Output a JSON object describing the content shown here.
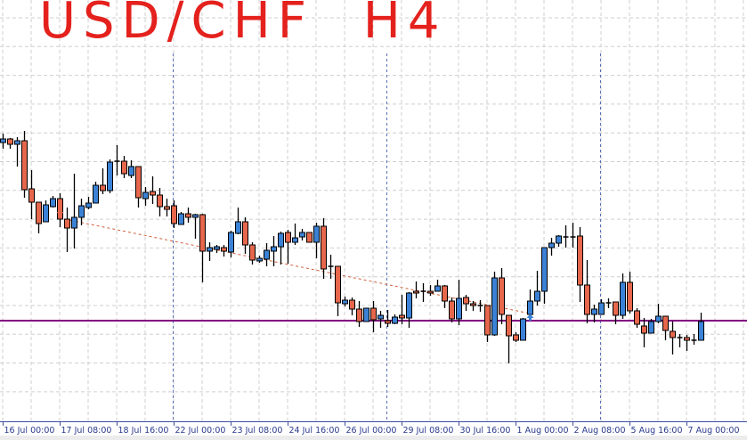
{
  "annotation": {
    "title_handwritten": "USD/CHF H4",
    "color": "#e4211d"
  },
  "chart_data": {
    "type": "candlestick",
    "title": "",
    "xlabel": "",
    "ylabel": "",
    "value_units": "relative price level (no price scale visible)",
    "ylim": [
      0,
      47
    ],
    "grid": true,
    "legend": "none",
    "colors": {
      "bull": "#3b82d6",
      "bear": "#e6674c",
      "outline": "#000000",
      "grid": "#cfcfcf",
      "axis": "#3f4f9f",
      "horizontal_line": "#800080",
      "separator": "#5a6fb8",
      "trade_line": "#d0603c"
    },
    "x_tick_labels": [
      "16 Jul 00:00",
      "17 Jul 08:00",
      "18 Jul 16:00",
      "22 Jul 00:00",
      "23 Jul 08:00",
      "24 Jul 16:00",
      "26 Jul 00:00",
      "29 Jul 08:00",
      "30 Jul 16:00",
      "1 Aug 00:00",
      "2 Aug 08:00",
      "5 Aug 16:00",
      "7 Aug 00:00"
    ],
    "x_tick_every_n_candles": 8,
    "period_separators_at_candle": [
      24,
      54,
      84
    ],
    "horizontal_line_level": 11.0,
    "trade_line": {
      "from_candle": 8,
      "from_level": 22.5,
      "to_candle": 74,
      "to_level": 11.8
    },
    "markers": [
      {
        "type": "sell-arrow",
        "candle": 8,
        "level": 23.0
      },
      {
        "type": "buy-arrow",
        "candle": 74,
        "level": 11.5
      }
    ],
    "ohlc": [
      [
        31.0,
        32.0,
        30.3,
        31.4
      ],
      [
        31.4,
        31.5,
        30.3,
        30.8
      ],
      [
        30.8,
        31.6,
        28.3,
        31.2
      ],
      [
        31.2,
        32.3,
        24.8,
        25.7
      ],
      [
        25.8,
        27.9,
        22.4,
        24.3
      ],
      [
        24.3,
        24.3,
        20.8,
        21.9
      ],
      [
        22.1,
        24.5,
        22.1,
        24.0
      ],
      [
        23.8,
        25.0,
        23.7,
        24.7
      ],
      [
        24.7,
        25.3,
        21.5,
        22.4
      ],
      [
        22.4,
        23.7,
        18.7,
        21.4
      ],
      [
        21.4,
        27.5,
        19.1,
        22.6
      ],
      [
        22.6,
        24.7,
        21.7,
        23.9
      ],
      [
        23.7,
        24.9,
        23.5,
        24.2
      ],
      [
        24.2,
        26.6,
        24.2,
        26.2
      ],
      [
        26.2,
        28.1,
        25.2,
        25.6
      ],
      [
        25.6,
        29.1,
        25.3,
        28.8
      ],
      [
        28.9,
        30.7,
        27.3,
        28.8
      ],
      [
        28.9,
        29.5,
        27.0,
        27.5
      ],
      [
        27.3,
        29.0,
        27.0,
        28.3
      ],
      [
        28.3,
        28.3,
        23.7,
        24.8
      ],
      [
        24.7,
        26.0,
        23.9,
        25.4
      ],
      [
        25.5,
        27.2,
        24.1,
        25.1
      ],
      [
        25.1,
        25.9,
        22.7,
        23.8
      ],
      [
        23.8,
        24.7,
        22.7,
        23.5
      ],
      [
        23.9,
        24.5,
        21.4,
        21.9
      ],
      [
        21.8,
        23.2,
        21.8,
        23.0
      ],
      [
        23.0,
        23.7,
        22.0,
        22.6
      ],
      [
        22.6,
        23.0,
        20.2,
        22.9
      ],
      [
        22.9,
        23.0,
        15.3,
        18.8
      ],
      [
        18.8,
        19.8,
        17.7,
        19.2
      ],
      [
        19.0,
        19.5,
        18.6,
        19.3
      ],
      [
        19.2,
        19.5,
        18.2,
        18.8
      ],
      [
        18.7,
        21.1,
        18.1,
        20.9
      ],
      [
        20.8,
        23.7,
        20.7,
        22.1
      ],
      [
        22.1,
        22.6,
        18.5,
        19.5
      ],
      [
        19.5,
        19.8,
        17.3,
        17.8
      ],
      [
        17.7,
        18.3,
        17.5,
        18.0
      ],
      [
        17.9,
        19.7,
        17.1,
        18.9
      ],
      [
        18.8,
        20.5,
        17.1,
        19.3
      ],
      [
        19.3,
        21.0,
        17.3,
        20.8
      ],
      [
        20.9,
        21.2,
        17.4,
        19.8
      ],
      [
        19.8,
        21.9,
        19.5,
        20.3
      ],
      [
        20.4,
        21.3,
        20.0,
        20.9
      ],
      [
        20.9,
        20.9,
        19.8,
        19.8
      ],
      [
        19.8,
        22.0,
        18.0,
        21.6
      ],
      [
        21.6,
        22.5,
        15.7,
        16.8
      ],
      [
        17.1,
        18.4,
        15.7,
        17.0
      ],
      [
        17.1,
        17.1,
        11.5,
        13.0
      ],
      [
        12.9,
        13.7,
        12.6,
        13.3
      ],
      [
        13.3,
        13.6,
        11.6,
        12.3
      ],
      [
        12.3,
        13.2,
        10.3,
        10.9
      ],
      [
        10.9,
        12.4,
        10.9,
        12.4
      ],
      [
        12.4,
        13.2,
        9.7,
        11.1
      ],
      [
        11.2,
        12.1,
        10.2,
        11.6
      ],
      [
        11.0,
        12.2,
        10.3,
        10.7
      ],
      [
        10.7,
        11.7,
        10.6,
        11.4
      ],
      [
        11.6,
        13.9,
        10.6,
        11.3
      ],
      [
        11.3,
        14.2,
        10.2,
        14.1
      ],
      [
        14.3,
        15.4,
        13.5,
        14.1
      ],
      [
        14.3,
        15.2,
        13.1,
        14.2
      ],
      [
        14.3,
        15.0,
        13.8,
        14.1
      ],
      [
        14.3,
        15.6,
        14.3,
        14.9
      ],
      [
        14.9,
        15.0,
        12.4,
        13.2
      ],
      [
        13.2,
        13.6,
        10.8,
        11.2
      ],
      [
        11.2,
        15.6,
        10.5,
        13.5
      ],
      [
        13.6,
        13.9,
        12.1,
        12.9
      ],
      [
        12.9,
        13.2,
        12.1,
        12.7
      ],
      [
        12.7,
        13.3,
        12.0,
        12.7
      ],
      [
        12.7,
        12.7,
        8.6,
        9.4
      ],
      [
        9.4,
        16.5,
        9.3,
        15.8
      ],
      [
        15.8,
        16.9,
        10.6,
        11.7
      ],
      [
        11.6,
        11.6,
        6.2,
        9.3
      ],
      [
        9.4,
        9.7,
        8.6,
        8.8
      ],
      [
        8.8,
        11.3,
        8.8,
        11.2
      ],
      [
        11.7,
        14.5,
        11.7,
        13.2
      ],
      [
        13.2,
        16.6,
        12.7,
        14.3
      ],
      [
        14.3,
        19.2,
        12.9,
        19.2
      ],
      [
        19.2,
        20.3,
        18.3,
        19.7
      ],
      [
        19.7,
        20.6,
        19.3,
        20.5
      ],
      [
        20.4,
        21.7,
        19.2,
        20.4
      ],
      [
        20.4,
        22.0,
        19.2,
        20.4
      ],
      [
        20.5,
        21.5,
        13.1,
        15.0
      ],
      [
        15.0,
        17.8,
        10.7,
        11.7
      ],
      [
        11.7,
        12.8,
        10.8,
        12.3
      ],
      [
        11.7,
        13.4,
        11.7,
        13.0
      ],
      [
        13.0,
        13.5,
        12.4,
        13.0
      ],
      [
        13.1,
        13.1,
        10.6,
        11.6
      ],
      [
        11.6,
        16.3,
        11.2,
        15.3
      ],
      [
        15.3,
        16.5,
        11.8,
        12.1
      ],
      [
        12.1,
        12.4,
        10.2,
        10.6
      ],
      [
        10.4,
        11.3,
        8.0,
        9.6
      ],
      [
        9.6,
        11.2,
        9.6,
        10.9
      ],
      [
        10.9,
        12.9,
        10.7,
        11.5
      ],
      [
        11.5,
        11.5,
        8.8,
        9.9
      ],
      [
        9.8,
        10.9,
        7.2,
        9.1
      ],
      [
        9.1,
        9.5,
        8.0,
        9.1
      ],
      [
        9.1,
        9.4,
        7.6,
        8.8
      ],
      [
        8.8,
        9.5,
        8.3,
        8.8
      ],
      [
        8.8,
        11.9,
        8.8,
        10.9
      ]
    ]
  }
}
